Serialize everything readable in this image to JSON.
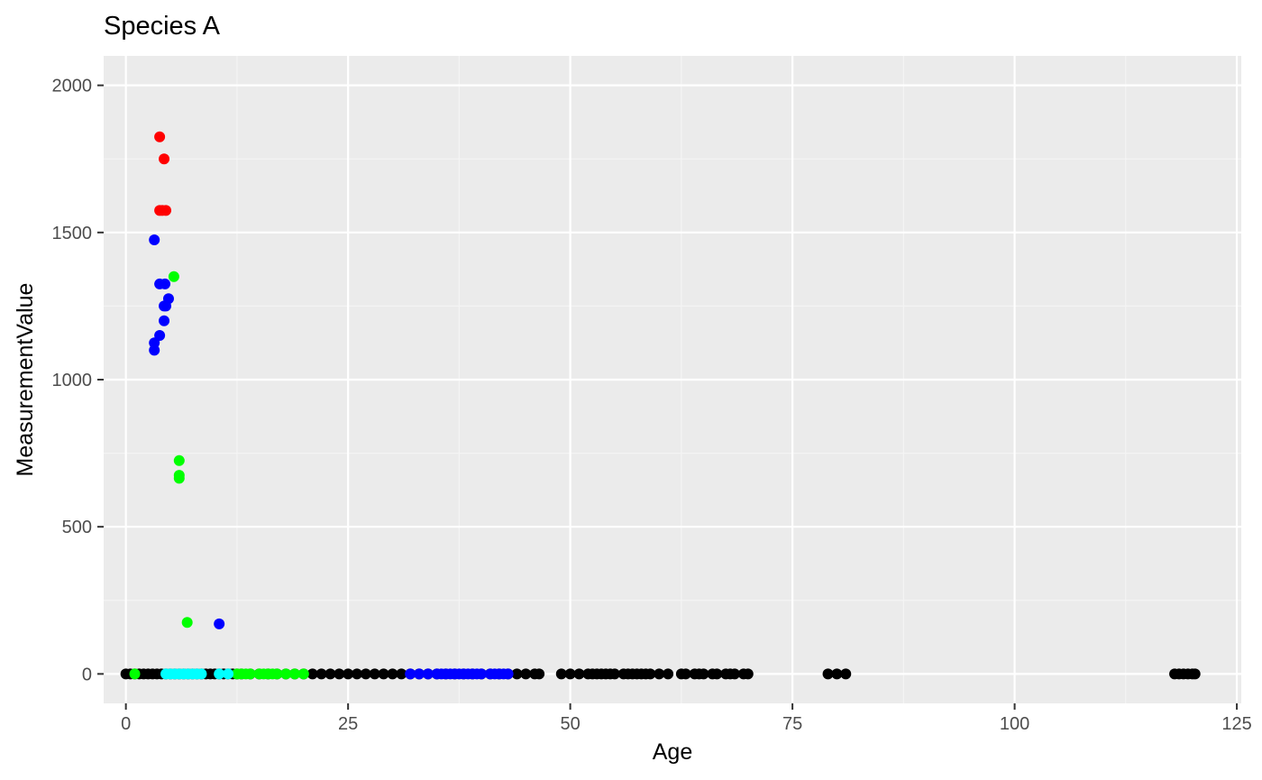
{
  "chart_data": {
    "type": "scatter",
    "title": "Species A",
    "xlabel": "Age",
    "ylabel": "MeasurementValue",
    "xlim": [
      -2.5,
      125.5
    ],
    "ylim": [
      -100,
      2100
    ],
    "x_ticks": [
      0,
      25,
      50,
      75,
      100,
      125
    ],
    "y_ticks": [
      0,
      500,
      1000,
      1500,
      2000
    ],
    "grid": true,
    "legend": "none",
    "colors": {
      "panel_background": "#ebebeb",
      "grid_major": "#ffffff",
      "grid_minor": "#f4f4f4",
      "text": "#000000",
      "tick_text": "#4d4d4d"
    },
    "series": [
      {
        "color": "#000000",
        "points": [
          [
            0,
            0
          ],
          [
            0.5,
            0
          ],
          [
            1,
            0
          ],
          [
            1.5,
            0
          ],
          [
            2,
            0
          ],
          [
            2.5,
            0
          ],
          [
            3,
            0
          ],
          [
            3.5,
            0
          ],
          [
            4,
            0
          ],
          [
            4.5,
            0
          ],
          [
            5,
            0
          ],
          [
            5.5,
            0
          ],
          [
            6,
            0
          ],
          [
            6.5,
            0
          ],
          [
            7,
            0
          ],
          [
            7.5,
            0
          ],
          [
            8,
            0
          ],
          [
            8.5,
            0
          ],
          [
            9,
            0
          ],
          [
            9.5,
            0
          ],
          [
            10,
            0
          ],
          [
            10.5,
            0
          ],
          [
            11,
            0
          ],
          [
            11.5,
            0
          ],
          [
            12,
            0
          ],
          [
            12.5,
            0
          ],
          [
            13,
            0
          ],
          [
            14,
            0
          ],
          [
            15,
            0
          ],
          [
            16,
            0
          ],
          [
            17,
            0
          ],
          [
            18,
            0
          ],
          [
            19,
            0
          ],
          [
            20,
            0
          ],
          [
            21,
            0
          ],
          [
            22,
            0
          ],
          [
            23,
            0
          ],
          [
            24,
            0
          ],
          [
            25,
            0
          ],
          [
            26,
            0
          ],
          [
            27,
            0
          ],
          [
            28,
            0
          ],
          [
            29,
            0
          ],
          [
            30,
            0
          ],
          [
            31,
            0
          ],
          [
            32,
            0
          ],
          [
            33,
            0
          ],
          [
            34,
            0
          ],
          [
            35,
            0
          ],
          [
            36,
            0
          ],
          [
            37,
            0
          ],
          [
            38,
            0
          ],
          [
            39,
            0
          ],
          [
            40,
            0
          ],
          [
            41,
            0
          ],
          [
            42,
            0
          ],
          [
            43,
            0
          ],
          [
            44,
            0
          ],
          [
            45,
            0
          ],
          [
            46,
            0
          ],
          [
            46.5,
            0
          ],
          [
            49,
            0
          ],
          [
            50,
            0
          ],
          [
            51,
            0
          ],
          [
            52,
            0
          ],
          [
            52.5,
            0
          ],
          [
            53,
            0
          ],
          [
            53.5,
            0
          ],
          [
            54,
            0
          ],
          [
            54.5,
            0
          ],
          [
            55,
            0
          ],
          [
            56,
            0
          ],
          [
            56.5,
            0
          ],
          [
            57,
            0
          ],
          [
            57.5,
            0
          ],
          [
            58,
            0
          ],
          [
            58.5,
            0
          ],
          [
            59,
            0
          ],
          [
            60,
            0
          ],
          [
            61,
            0
          ],
          [
            62.5,
            0
          ],
          [
            63,
            0
          ],
          [
            64,
            0
          ],
          [
            64.5,
            0
          ],
          [
            65,
            0
          ],
          [
            66,
            0
          ],
          [
            66.5,
            0
          ],
          [
            67.5,
            0
          ],
          [
            68,
            0
          ],
          [
            68.5,
            0
          ],
          [
            69.5,
            0
          ],
          [
            70,
            0
          ],
          [
            79,
            0
          ],
          [
            80,
            0
          ],
          [
            81,
            0
          ],
          [
            118,
            0
          ],
          [
            118.5,
            0
          ],
          [
            119,
            0
          ],
          [
            119.5,
            0
          ],
          [
            120,
            0
          ],
          [
            120.3,
            0
          ]
        ]
      },
      {
        "color": "#ff0000",
        "points": [
          [
            3.8,
            1825
          ],
          [
            4.3,
            1750
          ],
          [
            3.8,
            1575
          ],
          [
            4.1,
            1575
          ],
          [
            4.5,
            1575
          ]
        ]
      },
      {
        "color": "#0000ff",
        "points": [
          [
            3.2,
            1475
          ],
          [
            3.8,
            1325
          ],
          [
            4.4,
            1325
          ],
          [
            4.8,
            1275
          ],
          [
            4.3,
            1250
          ],
          [
            4.5,
            1250
          ],
          [
            4.3,
            1200
          ],
          [
            3.8,
            1150
          ],
          [
            3.2,
            1125
          ],
          [
            3.2,
            1100
          ],
          [
            10.5,
            170
          ],
          [
            32,
            0
          ],
          [
            33,
            0
          ],
          [
            34,
            0
          ],
          [
            35,
            0
          ],
          [
            35.5,
            0
          ],
          [
            36,
            0
          ],
          [
            36.5,
            0
          ],
          [
            37,
            0
          ],
          [
            37.5,
            0
          ],
          [
            38,
            0
          ],
          [
            38.5,
            0
          ],
          [
            39,
            0
          ],
          [
            39.5,
            0
          ],
          [
            40,
            0
          ],
          [
            41,
            0
          ],
          [
            41.5,
            0
          ],
          [
            42,
            0
          ],
          [
            42.5,
            0
          ],
          [
            43,
            0
          ]
        ]
      },
      {
        "color": "#00ff00",
        "points": [
          [
            5.4,
            1350
          ],
          [
            6,
            725
          ],
          [
            6,
            675
          ],
          [
            6,
            665
          ],
          [
            6.9,
            175
          ],
          [
            1,
            0
          ],
          [
            12.5,
            0
          ],
          [
            13,
            0
          ],
          [
            13.5,
            0
          ],
          [
            14,
            0
          ],
          [
            15,
            0
          ],
          [
            15.5,
            0
          ],
          [
            16,
            0
          ],
          [
            16.5,
            0
          ],
          [
            17,
            0
          ],
          [
            18,
            0
          ],
          [
            19,
            0
          ],
          [
            20,
            0
          ]
        ]
      },
      {
        "color": "#00ffff",
        "points": [
          [
            4.5,
            0
          ],
          [
            5,
            0
          ],
          [
            5.5,
            0
          ],
          [
            6,
            0
          ],
          [
            6.5,
            0
          ],
          [
            7,
            0
          ],
          [
            7.5,
            0
          ],
          [
            8,
            0
          ],
          [
            8.5,
            0
          ],
          [
            10.5,
            0
          ],
          [
            11.5,
            0
          ]
        ]
      }
    ]
  }
}
